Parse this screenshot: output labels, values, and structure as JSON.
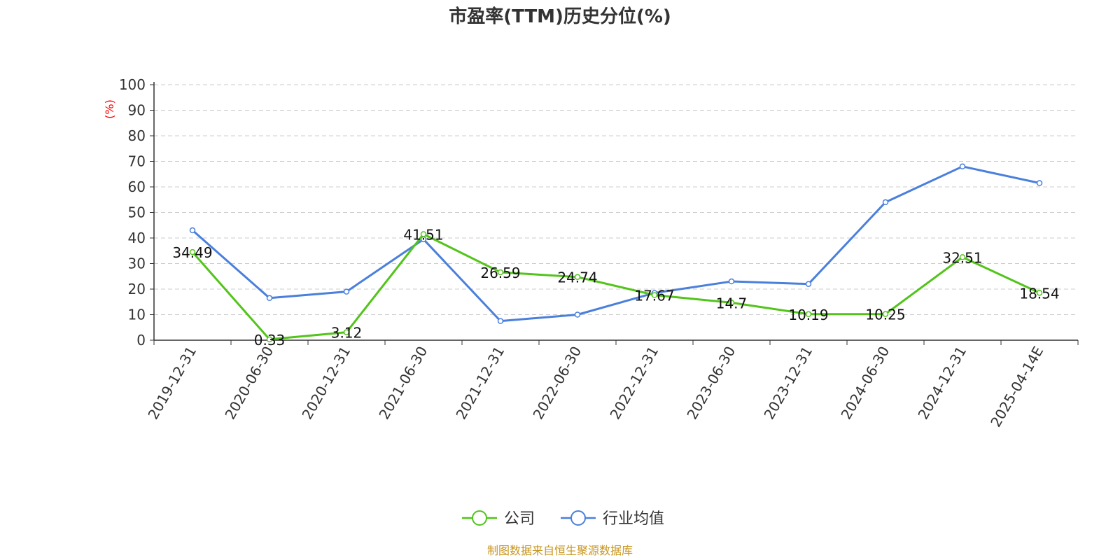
{
  "chart_data": {
    "type": "line",
    "title": "市盈率(TTM)历史分位(%)",
    "y_unit": "(%)",
    "categories": [
      "2019-12-31",
      "2020-06-30",
      "2020-12-31",
      "2021-06-30",
      "2021-12-31",
      "2022-06-30",
      "2022-12-31",
      "2023-06-30",
      "2023-12-31",
      "2024-06-30",
      "2024-12-31",
      "2025-04-14E"
    ],
    "ylim": [
      0,
      100
    ],
    "yticks": [
      0,
      10,
      20,
      30,
      40,
      50,
      60,
      70,
      80,
      90,
      100
    ],
    "grid": true,
    "legend_position": "bottom",
    "series": [
      {
        "name": "公司",
        "color": "#52c41a",
        "values": [
          34.49,
          0.33,
          3.12,
          41.51,
          26.59,
          24.74,
          17.67,
          14.7,
          10.19,
          10.25,
          32.51,
          18.54
        ],
        "labels": [
          "34.49",
          "0.33",
          "3.12",
          "41.51",
          "26.59",
          "24.74",
          "17.67",
          "14.7",
          "10.19",
          "10.25",
          "32.51",
          "18.54"
        ]
      },
      {
        "name": "行业均值",
        "color": "#4a7fdc",
        "values": [
          43,
          16.5,
          19,
          39.5,
          7.5,
          10,
          18.5,
          23,
          22,
          54,
          68,
          61.5
        ]
      }
    ],
    "source": "制图数据来自恒生聚源数据库",
    "colors": {
      "axis": "#333333",
      "grid": "#cccccc",
      "unit": "#ff0000",
      "source": "#c8961e",
      "title": "#333333"
    }
  }
}
